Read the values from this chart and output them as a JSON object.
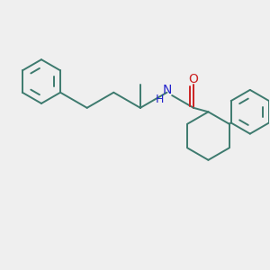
{
  "bg_color": "#efefef",
  "bond_color": "#3d7a6e",
  "n_color": "#2222cc",
  "o_color": "#cc2222",
  "line_width": 1.4,
  "font_size": 9,
  "fig_size": [
    3.0,
    3.0
  ],
  "dpi": 100,
  "xlim": [
    0,
    10
  ],
  "ylim": [
    1,
    11
  ]
}
